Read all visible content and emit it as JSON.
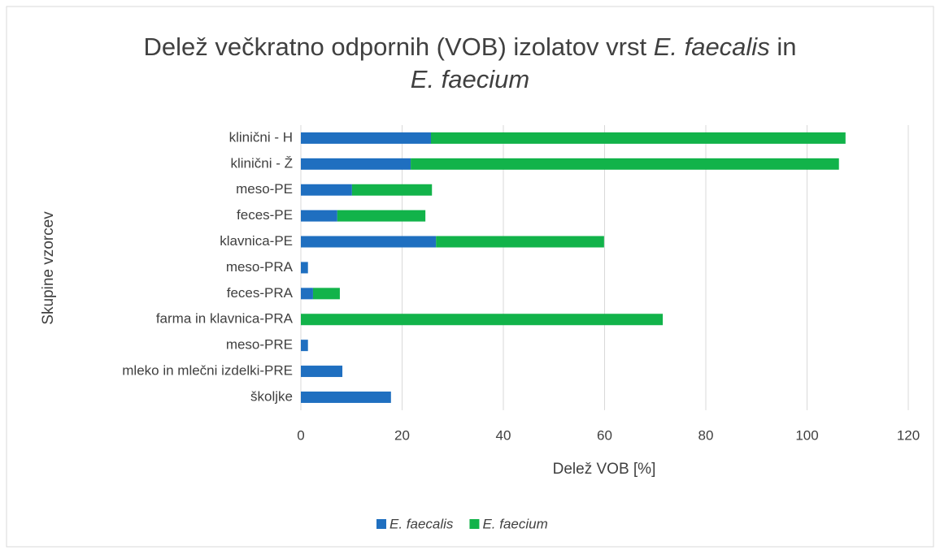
{
  "chart_data": {
    "type": "stacked-horizontal-bar",
    "title": [
      [
        {
          "text": "Delež večkratno odpornih (VOB) izolatov vrst ",
          "italic": false
        },
        {
          "text": "E. faecalis",
          "italic": true
        },
        {
          "text": " in",
          "italic": false
        }
      ],
      [
        {
          "text": "E. faecium",
          "italic": true
        }
      ]
    ],
    "y_label": "Skupine vzorcev",
    "x_label": "Delež VOB [%]",
    "categories": [
      "klinični - H",
      "klinični - Ž",
      "meso-PE",
      "feces-PE",
      "klavnica-PE",
      "meso-PRA",
      "feces-PRA",
      "farma in klavnica-PRA",
      "meso-PRE",
      "mleko in mlečni izdelki-PRE",
      "školjke"
    ],
    "series": [
      {
        "name": "E. faecalis",
        "color": "#1f6fc0",
        "values": [
          25.7,
          21.7,
          10.1,
          7.2,
          26.7,
          1.4,
          2.4,
          0,
          1.4,
          8.2,
          17.8
        ]
      },
      {
        "name": "E. faecium",
        "color": "#12b34a",
        "values": [
          81.9,
          84.6,
          15.8,
          17.4,
          33.2,
          0,
          5.3,
          71.5,
          0,
          0,
          0
        ]
      }
    ],
    "xlim": [
      0,
      120
    ],
    "xticks": [
      0,
      20,
      40,
      60,
      80,
      100,
      120
    ],
    "grid": true,
    "legend": "bottom"
  }
}
